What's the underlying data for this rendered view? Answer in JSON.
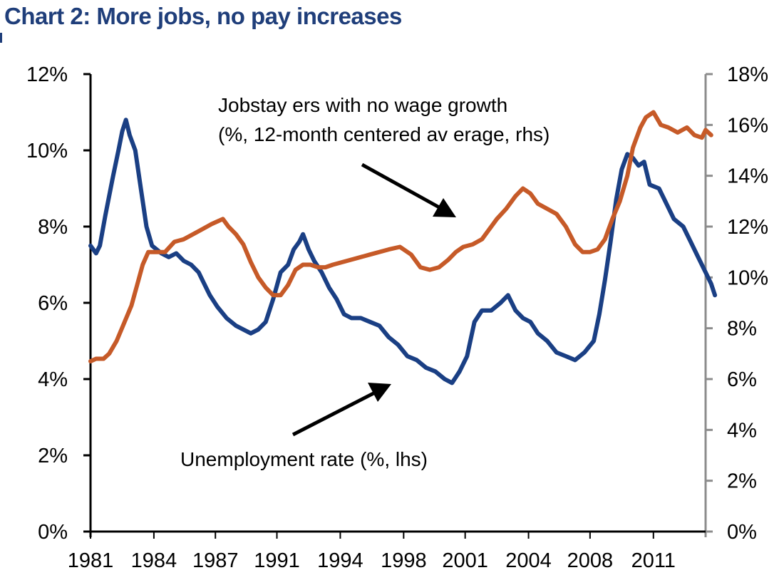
{
  "title": "Chart 2: More jobs, no pay increases",
  "colors": {
    "unemployment": "#1a3f84",
    "jobstayers": "#c65a28",
    "left_axis": "#000000",
    "right_axis": "#8c8c8c"
  },
  "chart_data": {
    "type": "line",
    "title": "Chart 2: More jobs, no pay increases",
    "xlim": [
      1981.0,
      2014.0
    ],
    "x_tick_labels": [
      "1981",
      "1984",
      "1987",
      "1991",
      "1994",
      "1998",
      "2001",
      "2004",
      "2008",
      "2011"
    ],
    "x_tick_values": [
      1981.0,
      1984.4,
      1987.7,
      1991.0,
      1994.4,
      1997.8,
      2001.1,
      2004.5,
      2007.8,
      2011.2
    ],
    "y_left": {
      "label": "Unemployment rate (%, lhs)",
      "lim": [
        0,
        12
      ],
      "ticks": [
        0,
        2,
        4,
        6,
        8,
        10,
        12
      ],
      "tick_labels": [
        "0%",
        "2%",
        "4%",
        "6%",
        "8%",
        "10%",
        "12%"
      ]
    },
    "y_right": {
      "label": "Jobstayers with no wage growth (%, 12-month centered average, rhs)",
      "lim": [
        0,
        18
      ],
      "ticks": [
        0,
        2,
        4,
        6,
        8,
        10,
        12,
        14,
        16,
        18
      ],
      "tick_labels": [
        "0%",
        "2%",
        "4%",
        "6%",
        "8%",
        "10%",
        "12%",
        "14%",
        "16%",
        "18%"
      ]
    },
    "series": [
      {
        "name": "Unemployment rate (%, lhs)",
        "axis": "left",
        "points": [
          [
            1981.0,
            7.5
          ],
          [
            1981.3,
            7.3
          ],
          [
            1981.5,
            7.5
          ],
          [
            1981.8,
            8.3
          ],
          [
            1982.2,
            9.3
          ],
          [
            1982.5,
            10.0
          ],
          [
            1982.7,
            10.5
          ],
          [
            1982.9,
            10.8
          ],
          [
            1983.1,
            10.4
          ],
          [
            1983.4,
            10.0
          ],
          [
            1983.7,
            9.0
          ],
          [
            1984.0,
            8.0
          ],
          [
            1984.3,
            7.5
          ],
          [
            1984.8,
            7.3
          ],
          [
            1985.2,
            7.2
          ],
          [
            1985.6,
            7.3
          ],
          [
            1986.0,
            7.1
          ],
          [
            1986.4,
            7.0
          ],
          [
            1986.8,
            6.8
          ],
          [
            1987.0,
            6.6
          ],
          [
            1987.4,
            6.2
          ],
          [
            1987.8,
            5.9
          ],
          [
            1988.3,
            5.6
          ],
          [
            1988.8,
            5.4
          ],
          [
            1989.2,
            5.3
          ],
          [
            1989.6,
            5.2
          ],
          [
            1990.0,
            5.3
          ],
          [
            1990.4,
            5.5
          ],
          [
            1990.8,
            6.1
          ],
          [
            1991.2,
            6.8
          ],
          [
            1991.6,
            7.0
          ],
          [
            1991.9,
            7.4
          ],
          [
            1992.2,
            7.6
          ],
          [
            1992.4,
            7.8
          ],
          [
            1992.7,
            7.4
          ],
          [
            1993.0,
            7.1
          ],
          [
            1993.4,
            6.8
          ],
          [
            1993.8,
            6.4
          ],
          [
            1994.2,
            6.1
          ],
          [
            1994.6,
            5.7
          ],
          [
            1995.0,
            5.6
          ],
          [
            1995.5,
            5.6
          ],
          [
            1996.0,
            5.5
          ],
          [
            1996.5,
            5.4
          ],
          [
            1997.0,
            5.1
          ],
          [
            1997.5,
            4.9
          ],
          [
            1998.0,
            4.6
          ],
          [
            1998.5,
            4.5
          ],
          [
            1999.0,
            4.3
          ],
          [
            1999.5,
            4.2
          ],
          [
            2000.0,
            4.0
          ],
          [
            2000.4,
            3.9
          ],
          [
            2000.8,
            4.2
          ],
          [
            2001.2,
            4.6
          ],
          [
            2001.6,
            5.5
          ],
          [
            2002.0,
            5.8
          ],
          [
            2002.5,
            5.8
          ],
          [
            2003.0,
            6.0
          ],
          [
            2003.4,
            6.2
          ],
          [
            2003.8,
            5.8
          ],
          [
            2004.2,
            5.6
          ],
          [
            2004.6,
            5.5
          ],
          [
            2005.0,
            5.2
          ],
          [
            2005.5,
            5.0
          ],
          [
            2006.0,
            4.7
          ],
          [
            2006.5,
            4.6
          ],
          [
            2007.0,
            4.5
          ],
          [
            2007.5,
            4.7
          ],
          [
            2008.0,
            5.0
          ],
          [
            2008.3,
            5.7
          ],
          [
            2008.6,
            6.6
          ],
          [
            2008.9,
            7.6
          ],
          [
            2009.2,
            8.7
          ],
          [
            2009.5,
            9.5
          ],
          [
            2009.8,
            9.9
          ],
          [
            2010.1,
            9.8
          ],
          [
            2010.4,
            9.6
          ],
          [
            2010.7,
            9.7
          ],
          [
            2011.0,
            9.1
          ],
          [
            2011.5,
            9.0
          ],
          [
            2011.9,
            8.6
          ],
          [
            2012.3,
            8.2
          ],
          [
            2012.8,
            8.0
          ],
          [
            2013.2,
            7.6
          ],
          [
            2013.6,
            7.2
          ],
          [
            2014.0,
            6.8
          ],
          [
            2014.3,
            6.5
          ],
          [
            2014.5,
            6.2
          ]
        ]
      },
      {
        "name": "Jobstayers with no wage growth (%, 12-month centered average, rhs)",
        "axis": "right",
        "points": [
          [
            1981.0,
            6.7
          ],
          [
            1981.3,
            6.8
          ],
          [
            1981.7,
            6.8
          ],
          [
            1982.0,
            7.0
          ],
          [
            1982.4,
            7.5
          ],
          [
            1982.8,
            8.2
          ],
          [
            1983.2,
            8.9
          ],
          [
            1983.5,
            9.7
          ],
          [
            1983.8,
            10.5
          ],
          [
            1984.1,
            11.0
          ],
          [
            1984.5,
            11.0
          ],
          [
            1985.0,
            11.0
          ],
          [
            1985.5,
            11.4
          ],
          [
            1986.0,
            11.5
          ],
          [
            1986.5,
            11.7
          ],
          [
            1987.0,
            11.9
          ],
          [
            1987.5,
            12.1
          ],
          [
            1987.8,
            12.2
          ],
          [
            1988.1,
            12.3
          ],
          [
            1988.4,
            12.0
          ],
          [
            1988.8,
            11.7
          ],
          [
            1989.2,
            11.3
          ],
          [
            1989.6,
            10.6
          ],
          [
            1990.0,
            10.0
          ],
          [
            1990.4,
            9.6
          ],
          [
            1990.8,
            9.3
          ],
          [
            1991.2,
            9.3
          ],
          [
            1991.6,
            9.7
          ],
          [
            1992.0,
            10.3
          ],
          [
            1992.4,
            10.5
          ],
          [
            1992.8,
            10.5
          ],
          [
            1993.2,
            10.4
          ],
          [
            1993.6,
            10.4
          ],
          [
            1994.0,
            10.5
          ],
          [
            1995.0,
            10.7
          ],
          [
            1996.0,
            10.9
          ],
          [
            1997.0,
            11.1
          ],
          [
            1997.6,
            11.2
          ],
          [
            1998.2,
            10.9
          ],
          [
            1998.7,
            10.4
          ],
          [
            1999.2,
            10.3
          ],
          [
            1999.7,
            10.4
          ],
          [
            2000.2,
            10.7
          ],
          [
            2000.6,
            11.0
          ],
          [
            2001.0,
            11.2
          ],
          [
            2001.5,
            11.3
          ],
          [
            2002.0,
            11.5
          ],
          [
            2002.4,
            11.9
          ],
          [
            2002.8,
            12.3
          ],
          [
            2003.3,
            12.7
          ],
          [
            2003.8,
            13.2
          ],
          [
            2004.2,
            13.5
          ],
          [
            2004.6,
            13.3
          ],
          [
            2005.0,
            12.9
          ],
          [
            2005.5,
            12.7
          ],
          [
            2006.0,
            12.5
          ],
          [
            2006.5,
            12.0
          ],
          [
            2007.0,
            11.3
          ],
          [
            2007.4,
            11.0
          ],
          [
            2007.8,
            11.0
          ],
          [
            2008.2,
            11.1
          ],
          [
            2008.6,
            11.5
          ],
          [
            2009.0,
            12.3
          ],
          [
            2009.4,
            13.0
          ],
          [
            2009.8,
            14.0
          ],
          [
            2010.1,
            15.1
          ],
          [
            2010.5,
            15.9
          ],
          [
            2010.8,
            16.3
          ],
          [
            2011.2,
            16.5
          ],
          [
            2011.6,
            16.0
          ],
          [
            2012.0,
            15.9
          ],
          [
            2012.5,
            15.7
          ],
          [
            2013.0,
            15.9
          ],
          [
            2013.4,
            15.6
          ],
          [
            2013.8,
            15.5
          ],
          [
            2014.0,
            15.8
          ],
          [
            2014.3,
            15.6
          ]
        ]
      }
    ],
    "annotations": [
      {
        "line1": "Jobstay ers with no wage growth",
        "line2": "(%, 12-month centered av erage, rhs)"
      },
      {
        "line1": "Unemployment rate (%, lhs)"
      }
    ]
  }
}
